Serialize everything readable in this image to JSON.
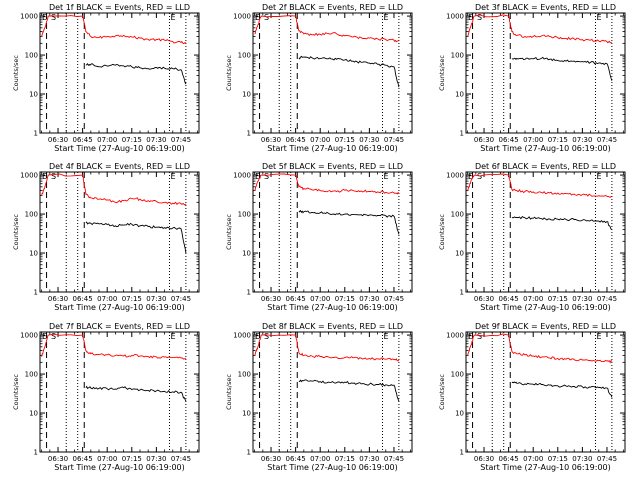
{
  "figure": {
    "panels": [
      {
        "title": "Det 1f BLACK = Events, RED = LLD"
      },
      {
        "title": "Det 2f BLACK = Events, RED = LLD"
      },
      {
        "title": "Det 3f BLACK = Events, RED = LLD"
      },
      {
        "title": "Det 4f BLACK = Events, RED = LLD"
      },
      {
        "title": "Det 5f BLACK = Events, RED = LLD"
      },
      {
        "title": "Det 6f BLACK = Events, RED = LLD"
      },
      {
        "title": "Det 7f BLACK = Events, RED = LLD"
      },
      {
        "title": "Det 8f BLACK = Events, RED = LLD"
      },
      {
        "title": "Det 9f BLACK = Events, RED = LLD"
      }
    ],
    "xlabel": "Start Time (27-Aug-10 06:19:00)",
    "ylabel": "Counts/sec",
    "xticks": [
      "06:30",
      "06:45",
      "07:00",
      "07:15",
      "07:30",
      "07:45"
    ],
    "yticks": [
      "1",
      "10",
      "100",
      "1000"
    ],
    "markers": {
      "e": "E",
      "s": "S"
    }
  },
  "colors": {
    "events": "#000000",
    "lld": "#ff0000"
  },
  "chart_data": [
    {
      "type": "line",
      "title": "Det 1f BLACK = Events, RED = LLD",
      "xlabel": "Start Time (27-Aug-10 06:19:00)",
      "ylabel": "Counts/sec",
      "y_scale": "log",
      "xlim": [
        "06:19",
        "07:56"
      ],
      "ylim": [
        1,
        1200
      ],
      "x": [
        "06:20",
        "06:22",
        "06:24",
        "06:45",
        "06:47",
        "06:50",
        "06:55",
        "07:00",
        "07:05",
        "07:10",
        "07:15",
        "07:20",
        "07:25",
        "07:30",
        "07:35",
        "07:40",
        "07:45",
        "07:48"
      ],
      "series": [
        {
          "name": "LLD",
          "color": "red",
          "values": [
            300,
            500,
            1000,
            1000,
            400,
            300,
            280,
            300,
            310,
            320,
            290,
            270,
            250,
            250,
            240,
            220,
            210,
            200
          ]
        },
        {
          "name": "Events",
          "color": "black",
          "values": [
            null,
            null,
            null,
            null,
            55,
            58,
            50,
            52,
            55,
            53,
            50,
            47,
            45,
            48,
            46,
            45,
            42,
            18
          ]
        }
      ]
    },
    {
      "type": "line",
      "title": "Det 2f BLACK = Events, RED = LLD",
      "xlabel": "Start Time (27-Aug-10 06:19:00)",
      "ylabel": "Counts/sec",
      "y_scale": "log",
      "xlim": [
        "06:19",
        "07:56"
      ],
      "ylim": [
        1,
        1200
      ],
      "x": [
        "06:20",
        "06:22",
        "06:24",
        "06:45",
        "06:47",
        "06:50",
        "06:55",
        "07:00",
        "07:05",
        "07:10",
        "07:15",
        "07:20",
        "07:25",
        "07:30",
        "07:35",
        "07:40",
        "07:45",
        "07:48"
      ],
      "series": [
        {
          "name": "LLD",
          "color": "red",
          "values": [
            350,
            600,
            1000,
            1000,
            420,
            350,
            330,
            340,
            360,
            350,
            310,
            290,
            280,
            270,
            260,
            250,
            240,
            230
          ]
        },
        {
          "name": "Events",
          "color": "black",
          "values": [
            null,
            null,
            null,
            null,
            85,
            88,
            85,
            82,
            80,
            78,
            75,
            70,
            65,
            62,
            58,
            55,
            50,
            15
          ]
        }
      ]
    },
    {
      "type": "line",
      "title": "Det 3f BLACK = Events, RED = LLD",
      "xlabel": "Start Time (27-Aug-10 06:19:00)",
      "ylabel": "Counts/sec",
      "y_scale": "log",
      "xlim": [
        "06:19",
        "07:56"
      ],
      "ylim": [
        1,
        1200
      ],
      "x": [
        "06:20",
        "06:22",
        "06:24",
        "06:45",
        "06:47",
        "06:50",
        "06:55",
        "07:00",
        "07:05",
        "07:10",
        "07:15",
        "07:20",
        "07:25",
        "07:30",
        "07:35",
        "07:40",
        "07:45",
        "07:48"
      ],
      "series": [
        {
          "name": "LLD",
          "color": "red",
          "values": [
            300,
            550,
            1000,
            1000,
            400,
            320,
            300,
            300,
            310,
            300,
            280,
            270,
            260,
            250,
            240,
            230,
            220,
            210
          ]
        },
        {
          "name": "Events",
          "color": "black",
          "values": [
            null,
            null,
            null,
            null,
            80,
            82,
            78,
            80,
            82,
            78,
            72,
            70,
            70,
            68,
            65,
            62,
            60,
            22
          ]
        }
      ]
    },
    {
      "type": "line",
      "title": "Det 4f BLACK = Events, RED = LLD",
      "xlabel": "Start Time (27-Aug-10 06:19:00)",
      "ylabel": "Counts/sec",
      "y_scale": "log",
      "xlim": [
        "06:19",
        "07:56"
      ],
      "ylim": [
        1,
        1200
      ],
      "x": [
        "06:20",
        "06:22",
        "06:24",
        "06:45",
        "06:47",
        "06:50",
        "06:55",
        "07:00",
        "07:05",
        "07:10",
        "07:15",
        "07:20",
        "07:25",
        "07:30",
        "07:35",
        "07:40",
        "07:45",
        "07:48"
      ],
      "series": [
        {
          "name": "LLD",
          "color": "red",
          "values": [
            300,
            500,
            1000,
            1000,
            320,
            260,
            240,
            230,
            200,
            220,
            250,
            240,
            220,
            210,
            200,
            190,
            185,
            180
          ]
        },
        {
          "name": "Events",
          "color": "black",
          "values": [
            null,
            null,
            null,
            null,
            60,
            58,
            56,
            54,
            50,
            52,
            55,
            50,
            48,
            46,
            45,
            44,
            42,
            10
          ]
        }
      ]
    },
    {
      "type": "line",
      "title": "Det 5f BLACK = Events, RED = LLD",
      "xlabel": "Start Time (27-Aug-10 06:19:00)",
      "ylabel": "Counts/sec",
      "y_scale": "log",
      "xlim": [
        "06:19",
        "07:56"
      ],
      "ylim": [
        1,
        1200
      ],
      "x": [
        "06:20",
        "06:22",
        "06:24",
        "06:45",
        "06:47",
        "06:50",
        "06:55",
        "07:00",
        "07:05",
        "07:10",
        "07:15",
        "07:20",
        "07:25",
        "07:30",
        "07:35",
        "07:40",
        "07:45",
        "07:48"
      ],
      "series": [
        {
          "name": "LLD",
          "color": "red",
          "values": [
            400,
            700,
            1000,
            1000,
            500,
            450,
            420,
            400,
            390,
            380,
            410,
            400,
            390,
            380,
            370,
            360,
            350,
            340
          ]
        },
        {
          "name": "Events",
          "color": "black",
          "values": [
            null,
            null,
            null,
            null,
            120,
            115,
            110,
            108,
            105,
            102,
            100,
            98,
            96,
            94,
            92,
            90,
            88,
            30
          ]
        }
      ]
    },
    {
      "type": "line",
      "title": "Det 6f BLACK = Events, RED = LLD",
      "xlabel": "Start Time (27-Aug-10 06:19:00)",
      "ylabel": "Counts/sec",
      "y_scale": "log",
      "xlim": [
        "06:19",
        "07:56"
      ],
      "ylim": [
        1,
        1200
      ],
      "x": [
        "06:20",
        "06:22",
        "06:24",
        "06:45",
        "06:47",
        "06:50",
        "06:55",
        "07:00",
        "07:05",
        "07:10",
        "07:15",
        "07:20",
        "07:25",
        "07:30",
        "07:35",
        "07:40",
        "07:45",
        "07:48"
      ],
      "series": [
        {
          "name": "LLD",
          "color": "red",
          "values": [
            400,
            700,
            1000,
            1000,
            430,
            400,
            380,
            370,
            360,
            350,
            345,
            335,
            325,
            315,
            305,
            295,
            285,
            280
          ]
        },
        {
          "name": "Events",
          "color": "black",
          "values": [
            null,
            null,
            null,
            null,
            80,
            82,
            80,
            78,
            76,
            75,
            74,
            73,
            72,
            70,
            68,
            66,
            64,
            40
          ]
        }
      ]
    },
    {
      "type": "line",
      "title": "Det 7f BLACK = Events, RED = LLD",
      "xlabel": "Start Time (27-Aug-10 06:19:00)",
      "ylabel": "Counts/sec",
      "y_scale": "log",
      "xlim": [
        "06:19",
        "07:56"
      ],
      "ylim": [
        1,
        1200
      ],
      "x": [
        "06:20",
        "06:22",
        "06:24",
        "06:45",
        "06:47",
        "06:50",
        "06:55",
        "07:00",
        "07:05",
        "07:10",
        "07:15",
        "07:20",
        "07:25",
        "07:30",
        "07:35",
        "07:40",
        "07:45",
        "07:48"
      ],
      "series": [
        {
          "name": "LLD",
          "color": "red",
          "values": [
            280,
            500,
            1000,
            1000,
            400,
            330,
            320,
            310,
            300,
            290,
            300,
            290,
            280,
            275,
            270,
            265,
            260,
            255
          ]
        },
        {
          "name": "Events",
          "color": "black",
          "values": [
            null,
            null,
            null,
            null,
            45,
            44,
            43,
            42,
            41,
            45,
            40,
            39,
            38,
            37,
            36,
            35,
            34,
            20
          ]
        }
      ]
    },
    {
      "type": "line",
      "title": "Det 8f BLACK = Events, RED = LLD",
      "xlabel": "Start Time (27-Aug-10 06:19:00)",
      "ylabel": "Counts/sec",
      "y_scale": "log",
      "xlim": [
        "06:19",
        "07:56"
      ],
      "ylim": [
        1,
        1200
      ],
      "x": [
        "06:20",
        "06:22",
        "06:24",
        "06:45",
        "06:47",
        "06:50",
        "06:55",
        "07:00",
        "07:05",
        "07:10",
        "07:15",
        "07:20",
        "07:25",
        "07:30",
        "07:35",
        "07:40",
        "07:45",
        "07:48"
      ],
      "series": [
        {
          "name": "LLD",
          "color": "red",
          "values": [
            300,
            500,
            1000,
            1000,
            350,
            300,
            290,
            280,
            275,
            270,
            265,
            260,
            255,
            250,
            245,
            240,
            235,
            230
          ]
        },
        {
          "name": "Events",
          "color": "black",
          "values": [
            null,
            null,
            null,
            null,
            65,
            68,
            66,
            64,
            62,
            60,
            62,
            58,
            56,
            55,
            54,
            53,
            52,
            20
          ]
        }
      ]
    },
    {
      "type": "line",
      "title": "Det 9f BLACK = Events, RED = LLD",
      "xlabel": "Start Time (27-Aug-10 06:19:00)",
      "ylabel": "Counts/sec",
      "y_scale": "log",
      "xlim": [
        "06:19",
        "07:56"
      ],
      "ylim": [
        1,
        1200
      ],
      "x": [
        "06:20",
        "06:22",
        "06:24",
        "06:45",
        "06:47",
        "06:50",
        "06:55",
        "07:00",
        "07:05",
        "07:10",
        "07:15",
        "07:20",
        "07:25",
        "07:30",
        "07:35",
        "07:40",
        "07:45",
        "07:48"
      ],
      "series": [
        {
          "name": "LLD",
          "color": "red",
          "values": [
            300,
            550,
            1000,
            1000,
            380,
            330,
            310,
            290,
            270,
            260,
            250,
            240,
            235,
            230,
            225,
            220,
            215,
            210
          ]
        },
        {
          "name": "Events",
          "color": "black",
          "values": [
            null,
            null,
            null,
            null,
            60,
            58,
            56,
            55,
            54,
            52,
            50,
            49,
            48,
            47,
            46,
            45,
            44,
            25
          ]
        }
      ]
    }
  ]
}
